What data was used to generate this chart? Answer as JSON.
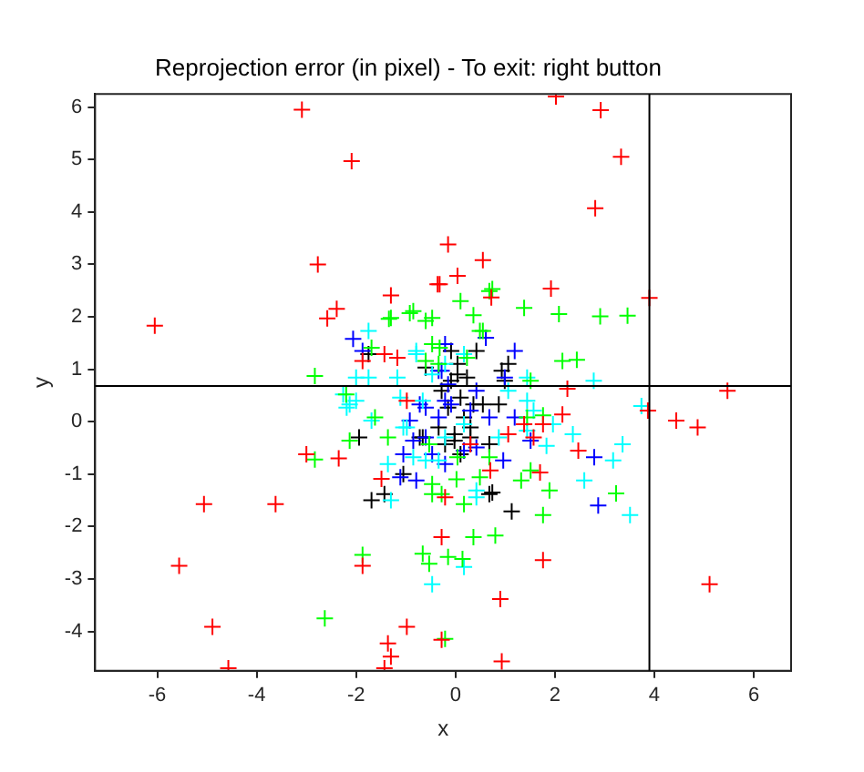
{
  "chart_data": {
    "type": "scatter",
    "title": "Reprojection error (in pixel) - To exit: right button",
    "xlabel": "x",
    "ylabel": "y",
    "xlim": [
      -7.25,
      6.75
    ],
    "xticks": [
      -6,
      -4,
      -2,
      0,
      2,
      4,
      6
    ],
    "ylim": [
      -4.75,
      6.25
    ],
    "yticks": [
      -4,
      -3,
      -2,
      -1,
      0,
      1,
      2,
      3,
      4,
      5,
      6
    ],
    "grid": false,
    "legend": false,
    "marker": "cross",
    "ref_lines": [
      {
        "axis": "x",
        "value": 3.9,
        "color": "#000000"
      },
      {
        "axis": "y",
        "value": 0.68,
        "color": "#000000"
      }
    ],
    "series": [
      {
        "color": "#ff0000",
        "x": [
          -3.09,
          -2.09,
          -2.77,
          -2.58,
          -2.39,
          -6.05,
          -1.3,
          -0.36,
          -1.43,
          -1.17,
          -1.87,
          2.02,
          2.92,
          3.33,
          2.81,
          -0.15,
          0.55,
          0.04,
          -0.32,
          0.72,
          1.92,
          3.9,
          -3.0,
          -2.35,
          -5.06,
          -3.62,
          -5.56,
          -4.89,
          -4.57,
          -1.87,
          -0.98,
          -1.36,
          -1.3,
          -1.43,
          -1.49,
          -0.98,
          2.25,
          5.47,
          3.87,
          4.44,
          4.87,
          5.11,
          1.76,
          0.9,
          0.93,
          -0.28,
          -0.28,
          2.15,
          1.38,
          1.06,
          1.57,
          1.76,
          2.47,
          1.7,
          0.7,
          0.3,
          -0.21
        ],
        "values": [
          5.95,
          4.97,
          3.0,
          1.97,
          2.15,
          1.83,
          2.41,
          2.62,
          1.29,
          1.22,
          1.16,
          6.2,
          5.94,
          5.05,
          4.07,
          3.38,
          3.08,
          2.78,
          2.62,
          2.37,
          2.54,
          2.36,
          -0.62,
          -0.7,
          -1.57,
          -1.57,
          -2.75,
          -3.91,
          -4.7,
          -2.75,
          -3.91,
          -4.23,
          -4.48,
          -4.7,
          -1.09,
          0.4,
          0.63,
          0.59,
          0.21,
          0.02,
          -0.11,
          -3.1,
          -2.64,
          -3.38,
          -4.57,
          -4.16,
          -2.2,
          0.14,
          -0.05,
          -0.24,
          -0.3,
          -0.05,
          -0.55,
          -0.97,
          -0.93,
          -0.43,
          -1.44
        ]
      },
      {
        "color": "#00ff00",
        "x": [
          -2.83,
          -1.34,
          -0.92,
          -0.6,
          -0.47,
          -1.69,
          -0.6,
          0.74,
          0.1,
          0.36,
          1.38,
          2.08,
          2.91,
          3.46,
          2.15,
          2.44,
          0.49,
          -0.32,
          -0.47,
          -2.83,
          -2.13,
          -1.87,
          -2.63,
          -1.36,
          -0.66,
          -0.53,
          -0.47,
          -1.62,
          -2.2,
          0.02,
          0.49,
          1.32,
          1.51,
          1.89,
          3.23,
          0.17,
          1.76,
          0.36,
          0.8,
          -0.15,
          0.14,
          -0.21,
          -0.28,
          1.51,
          1.76,
          0.68,
          -0.85,
          -1.3,
          0.68,
          0.55,
          -0.53,
          0.04,
          -0.47,
          1.44,
          -0.34,
          0.23
        ],
        "values": [
          0.87,
          1.96,
          2.07,
          1.92,
          1.48,
          1.41,
          1.16,
          2.53,
          2.3,
          2.03,
          2.17,
          2.05,
          2.01,
          2.02,
          1.16,
          1.18,
          1.73,
          1.41,
          1.98,
          -0.72,
          -0.36,
          -2.54,
          -3.75,
          -0.3,
          -2.52,
          -2.71,
          -1.38,
          0.08,
          0.52,
          -1.1,
          -1.06,
          -1.12,
          -0.93,
          -1.31,
          -1.37,
          -1.57,
          -1.78,
          -2.2,
          -2.17,
          -2.58,
          -2.62,
          -4.14,
          -1.38,
          0.78,
          0.12,
          -0.68,
          2.11,
          1.98,
          2.49,
          1.73,
          -0.43,
          -0.68,
          -1.19,
          0.08,
          1.1,
          1.22
        ]
      },
      {
        "color": "#00ffff",
        "x": [
          -1.75,
          -2.0,
          -1.75,
          -1.17,
          -0.79,
          -0.47,
          1.44,
          2.78,
          -0.21,
          0.17,
          -2.26,
          -2.0,
          -2.19,
          -1.69,
          -1.05,
          -1.3,
          -0.6,
          -0.47,
          -0.66,
          3.74,
          3.36,
          3.17,
          2.59,
          3.51,
          2.36,
          0.42,
          0.17,
          1.44,
          1.57,
          1.83,
          -0.21,
          -0.34,
          1.06,
          -2.13,
          -1.11,
          -0.98,
          -0.79,
          0.87,
          1.44,
          1.96,
          0.17,
          -1.36,
          -0.85,
          0.42
        ],
        "values": [
          1.73,
          0.84,
          0.84,
          0.84,
          1.29,
          0.9,
          0.84,
          0.78,
          1.1,
          1.29,
          0.52,
          0.4,
          0.27,
          0.02,
          -0.11,
          -1.5,
          -0.74,
          -3.1,
          0.4,
          0.3,
          -0.43,
          -0.74,
          -1.12,
          -1.78,
          -0.24,
          -1.44,
          -2.77,
          0.4,
          0.21,
          -0.46,
          -0.3,
          -0.74,
          0.59,
          0.33,
          0.46,
          -0.11,
          1.35,
          -0.3,
          -0.17,
          -0.05,
          -0.05,
          -0.81,
          -0.68,
          -1.31
        ]
      },
      {
        "color": "#0000ff",
        "x": [
          -2.06,
          -1.87,
          -0.34,
          1.19,
          0.61,
          -0.28,
          0.99,
          -0.92,
          -0.85,
          -0.6,
          -1.11,
          -0.79,
          -1.05,
          -0.47,
          2.79,
          2.87,
          1.51,
          0.96,
          0.42,
          -0.21,
          0.3,
          1.19,
          -0.21,
          -0.15,
          -0.34,
          -0.6,
          -0.21,
          0.17,
          0.68,
          -0.72,
          -0.09,
          0.42
        ],
        "values": [
          1.58,
          1.35,
          0.97,
          1.35,
          1.6,
          0.97,
          0.84,
          0.02,
          -0.36,
          0.27,
          -1.06,
          -1.12,
          -0.62,
          -0.62,
          -0.68,
          -1.6,
          -0.36,
          -0.74,
          -0.49,
          0.4,
          0.21,
          0.08,
          1.48,
          0.71,
          0.08,
          -0.3,
          -0.81,
          -0.55,
          0.08,
          0.33,
          0.33,
          0.59
        ]
      },
      {
        "color": "#000000",
        "x": [
          -1.75,
          1.06,
          0.04,
          -1.94,
          -1.69,
          -1.43,
          -1.05,
          -0.66,
          0.74,
          1.13,
          0.87,
          0.99,
          -0.02,
          0.3,
          0.04,
          0.23,
          -0.09,
          -0.28,
          0.1,
          0.36,
          -0.15,
          0.17,
          -0.34,
          -0.02,
          0.3,
          -0.21,
          0.1,
          0.55,
          0.93,
          0.68,
          -0.72,
          0.68,
          -0.09,
          0.42,
          -0.6
        ],
        "values": [
          1.29,
          1.1,
          0.9,
          -0.3,
          -1.5,
          -1.38,
          -1.0,
          -0.3,
          -1.35,
          -1.71,
          0.33,
          0.78,
          -0.36,
          -0.11,
          1.1,
          0.84,
          0.78,
          0.59,
          0.46,
          0.33,
          0.27,
          0.08,
          -0.11,
          -0.24,
          -0.3,
          -0.43,
          -0.62,
          0.33,
          0.97,
          -0.43,
          -0.3,
          -1.38,
          1.35,
          1.35,
          1.03
        ]
      }
    ]
  }
}
